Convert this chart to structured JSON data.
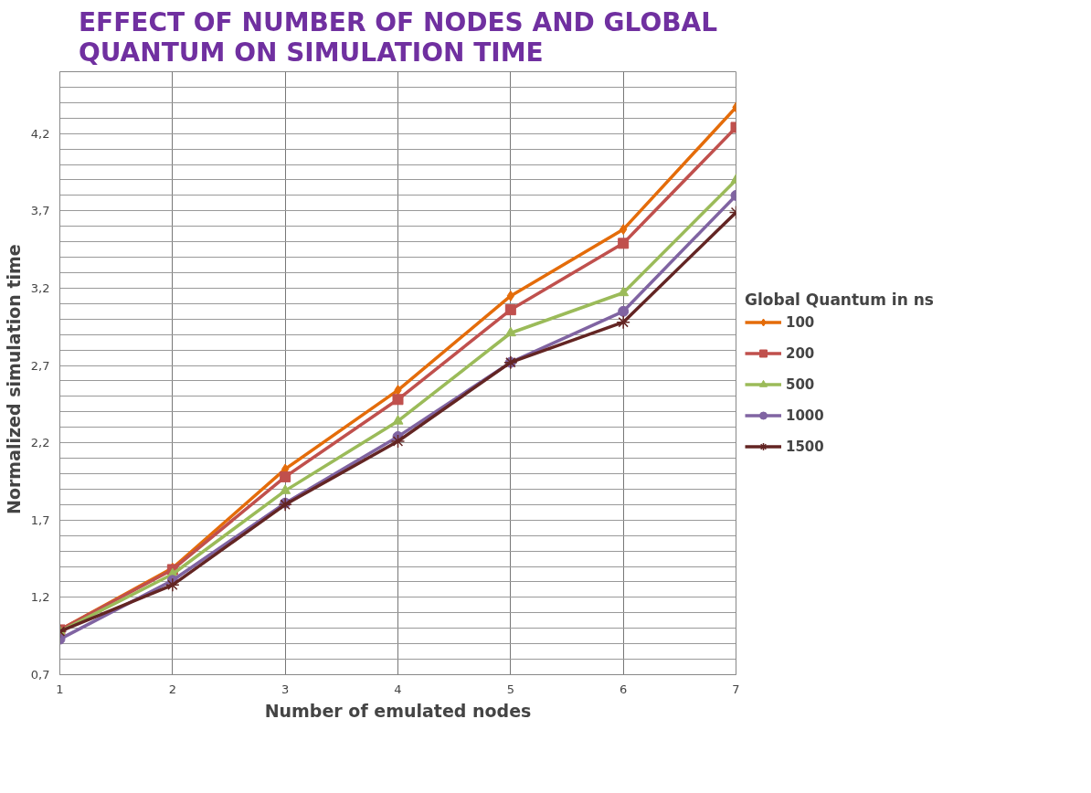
{
  "chart_data": {
    "type": "line",
    "title": "EFFECT OF NUMBER OF NODES AND GLOBAL QUANTUM ON SIMULATION TIME",
    "xlabel": "Number of emulated nodes",
    "ylabel": "Normalized  simulation  time",
    "legend_title": "Global Quantum in ns",
    "x": [
      1,
      2,
      3,
      4,
      5,
      6,
      7
    ],
    "series": [
      {
        "name": "100",
        "color": "#e46c0a",
        "marker": "diamond",
        "values": [
          0.99,
          1.39,
          2.03,
          2.54,
          3.15,
          3.58,
          4.37
        ]
      },
      {
        "name": "200",
        "color": "#c0504d",
        "marker": "square",
        "values": [
          0.99,
          1.38,
          1.98,
          2.48,
          3.06,
          3.49,
          4.24
        ]
      },
      {
        "name": "500",
        "color": "#9bbb59",
        "marker": "triangle",
        "values": [
          0.98,
          1.35,
          1.89,
          2.34,
          2.91,
          3.17,
          3.9
        ]
      },
      {
        "name": "1000",
        "color": "#8064a2",
        "marker": "circle",
        "values": [
          0.93,
          1.31,
          1.81,
          2.24,
          2.72,
          3.05,
          3.8
        ]
      },
      {
        "name": "1500",
        "color": "#632523",
        "marker": "cross",
        "values": [
          0.98,
          1.28,
          1.8,
          2.21,
          2.72,
          2.98,
          3.69
        ]
      }
    ],
    "xlim": [
      1,
      7
    ],
    "xticks": [
      1,
      2,
      3,
      4,
      5,
      6,
      7
    ],
    "ylim": [
      0.7,
      4.6
    ],
    "yticks": [
      {
        "value": 0.7,
        "label": "0,7"
      },
      {
        "value": 0.8,
        "label": null
      },
      {
        "value": 0.9,
        "label": null
      },
      {
        "value": 1.0,
        "label": null
      },
      {
        "value": 1.1,
        "label": null
      },
      {
        "value": 1.2,
        "label": "1,2"
      },
      {
        "value": 1.3,
        "label": null
      },
      {
        "value": 1.4,
        "label": null
      },
      {
        "value": 1.5,
        "label": null
      },
      {
        "value": 1.6,
        "label": null
      },
      {
        "value": 1.7,
        "label": "1,7"
      },
      {
        "value": 1.8,
        "label": null
      },
      {
        "value": 1.9,
        "label": null
      },
      {
        "value": 2.0,
        "label": null
      },
      {
        "value": 2.1,
        "label": null
      },
      {
        "value": 2.2,
        "label": "2,2"
      },
      {
        "value": 2.3,
        "label": null
      },
      {
        "value": 2.4,
        "label": null
      },
      {
        "value": 2.5,
        "label": null
      },
      {
        "value": 2.6,
        "label": null
      },
      {
        "value": 2.7,
        "label": "2,7"
      },
      {
        "value": 2.8,
        "label": null
      },
      {
        "value": 2.9,
        "label": null
      },
      {
        "value": 3.0,
        "label": null
      },
      {
        "value": 3.1,
        "label": null
      },
      {
        "value": 3.2,
        "label": "3,2"
      },
      {
        "value": 3.3,
        "label": null
      },
      {
        "value": 3.4,
        "label": null
      },
      {
        "value": 3.5,
        "label": null
      },
      {
        "value": 3.6,
        "label": null
      },
      {
        "value": 3.7,
        "label": "3,7"
      },
      {
        "value": 3.8,
        "label": null
      },
      {
        "value": 3.9,
        "label": null
      },
      {
        "value": 4.0,
        "label": null
      },
      {
        "value": 4.1,
        "label": null
      },
      {
        "value": 4.2,
        "label": "4,2"
      },
      {
        "value": 4.3,
        "label": null
      },
      {
        "value": 4.4,
        "label": null
      },
      {
        "value": 4.5,
        "label": null
      },
      {
        "value": 4.6,
        "label": null
      }
    ],
    "grid": true,
    "legend": "right",
    "line_style": "solid"
  }
}
